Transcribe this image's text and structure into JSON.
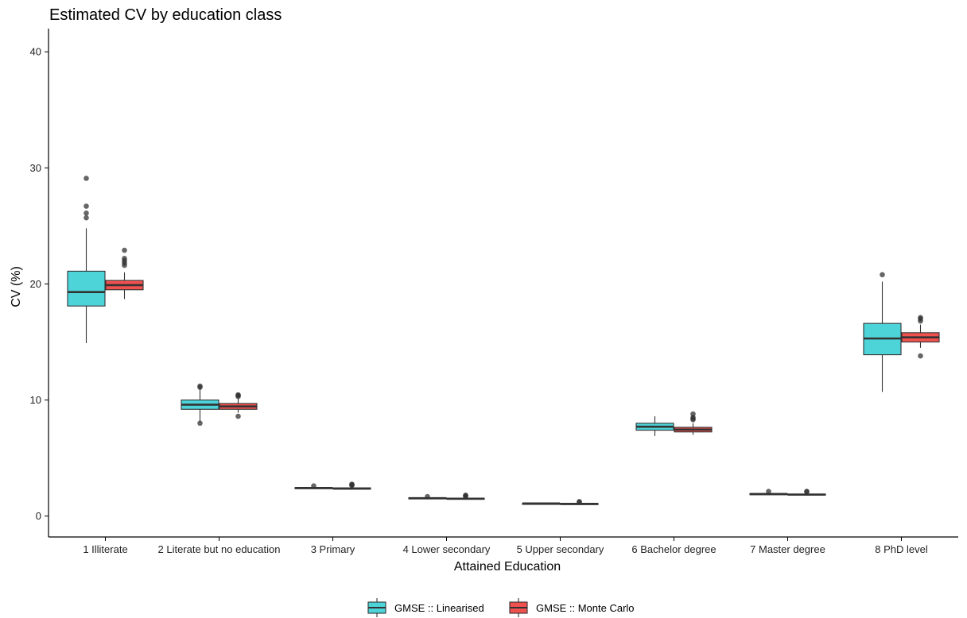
{
  "chart_data": {
    "type": "box",
    "title": "Estimated CV by education class",
    "xlabel": "Attained Education",
    "ylabel": "CV (%)",
    "ylim": [
      -1.8,
      42
    ],
    "yticks": [
      0,
      10,
      20,
      30,
      40
    ],
    "grid": false,
    "legend_position": "bottom",
    "categories": [
      "1 Illiterate",
      "2 Literate but no education",
      "3 Primary",
      "4 Lower secondary",
      "5 Upper secondary",
      "6 Bachelor degree",
      "7 Master degree",
      "8 PhD level"
    ],
    "series": [
      {
        "name": "GMSE :: Linearised",
        "color": "#4dd4d9",
        "boxes": [
          {
            "whisker_low": 14.9,
            "q1": 18.1,
            "median": 19.3,
            "q3": 21.1,
            "whisker_high": 24.8,
            "outliers": [
              25.7,
              26.1,
              26.7,
              29.1
            ]
          },
          {
            "whisker_low": 8.1,
            "q1": 9.2,
            "median": 9.6,
            "q3": 10.0,
            "whisker_high": 11.0,
            "outliers": [
              8.0,
              11.1,
              11.2
            ]
          },
          {
            "whisker_low": 2.33,
            "q1": 2.38,
            "median": 2.42,
            "q3": 2.46,
            "whisker_high": 2.52,
            "outliers": [
              2.6
            ]
          },
          {
            "whisker_low": 1.47,
            "q1": 1.51,
            "median": 1.54,
            "q3": 1.58,
            "whisker_high": 1.62,
            "outliers": [
              1.68
            ]
          },
          {
            "whisker_low": 1.03,
            "q1": 1.07,
            "median": 1.09,
            "q3": 1.11,
            "whisker_high": 1.14,
            "outliers": []
          },
          {
            "whisker_low": 6.9,
            "q1": 7.4,
            "median": 7.7,
            "q3": 8.0,
            "whisker_high": 8.6,
            "outliers": []
          },
          {
            "whisker_low": 1.8,
            "q1": 1.86,
            "median": 1.9,
            "q3": 1.94,
            "whisker_high": 2.0,
            "outliers": [
              2.12
            ]
          },
          {
            "whisker_low": 10.7,
            "q1": 13.9,
            "median": 15.3,
            "q3": 16.6,
            "whisker_high": 20.2,
            "outliers": [
              20.8
            ]
          }
        ]
      },
      {
        "name": "GMSE :: Monte Carlo",
        "color": "#f0514f",
        "boxes": [
          {
            "whisker_low": 18.7,
            "q1": 19.5,
            "median": 19.9,
            "q3": 20.3,
            "whisker_high": 21.0,
            "outliers": [
              21.6,
              21.8,
              22.0,
              22.2,
              22.9
            ]
          },
          {
            "whisker_low": 8.9,
            "q1": 9.2,
            "median": 9.45,
            "q3": 9.7,
            "whisker_high": 10.1,
            "outliers": [
              8.6,
              10.3,
              10.4,
              10.45
            ]
          },
          {
            "whisker_low": 2.26,
            "q1": 2.32,
            "median": 2.37,
            "q3": 2.43,
            "whisker_high": 2.55,
            "outliers": [
              2.65,
              2.7,
              2.75
            ]
          },
          {
            "whisker_low": 1.42,
            "q1": 1.46,
            "median": 1.5,
            "q3": 1.55,
            "whisker_high": 1.62,
            "outliers": [
              1.7,
              1.75,
              1.8
            ]
          },
          {
            "whisker_low": 0.98,
            "q1": 1.02,
            "median": 1.05,
            "q3": 1.09,
            "whisker_high": 1.15,
            "outliers": [
              1.2,
              1.25
            ]
          },
          {
            "whisker_low": 7.0,
            "q1": 7.25,
            "median": 7.45,
            "q3": 7.65,
            "whisker_high": 8.0,
            "outliers": [
              8.3,
              8.4,
              8.5,
              8.8
            ]
          },
          {
            "whisker_low": 1.75,
            "q1": 1.8,
            "median": 1.85,
            "q3": 1.9,
            "whisker_high": 1.98,
            "outliers": [
              2.08,
              2.13
            ]
          },
          {
            "whisker_low": 14.5,
            "q1": 15.0,
            "median": 15.4,
            "q3": 15.8,
            "whisker_high": 16.5,
            "outliers": [
              13.8,
              16.8,
              17.0,
              17.1
            ]
          }
        ]
      }
    ]
  }
}
